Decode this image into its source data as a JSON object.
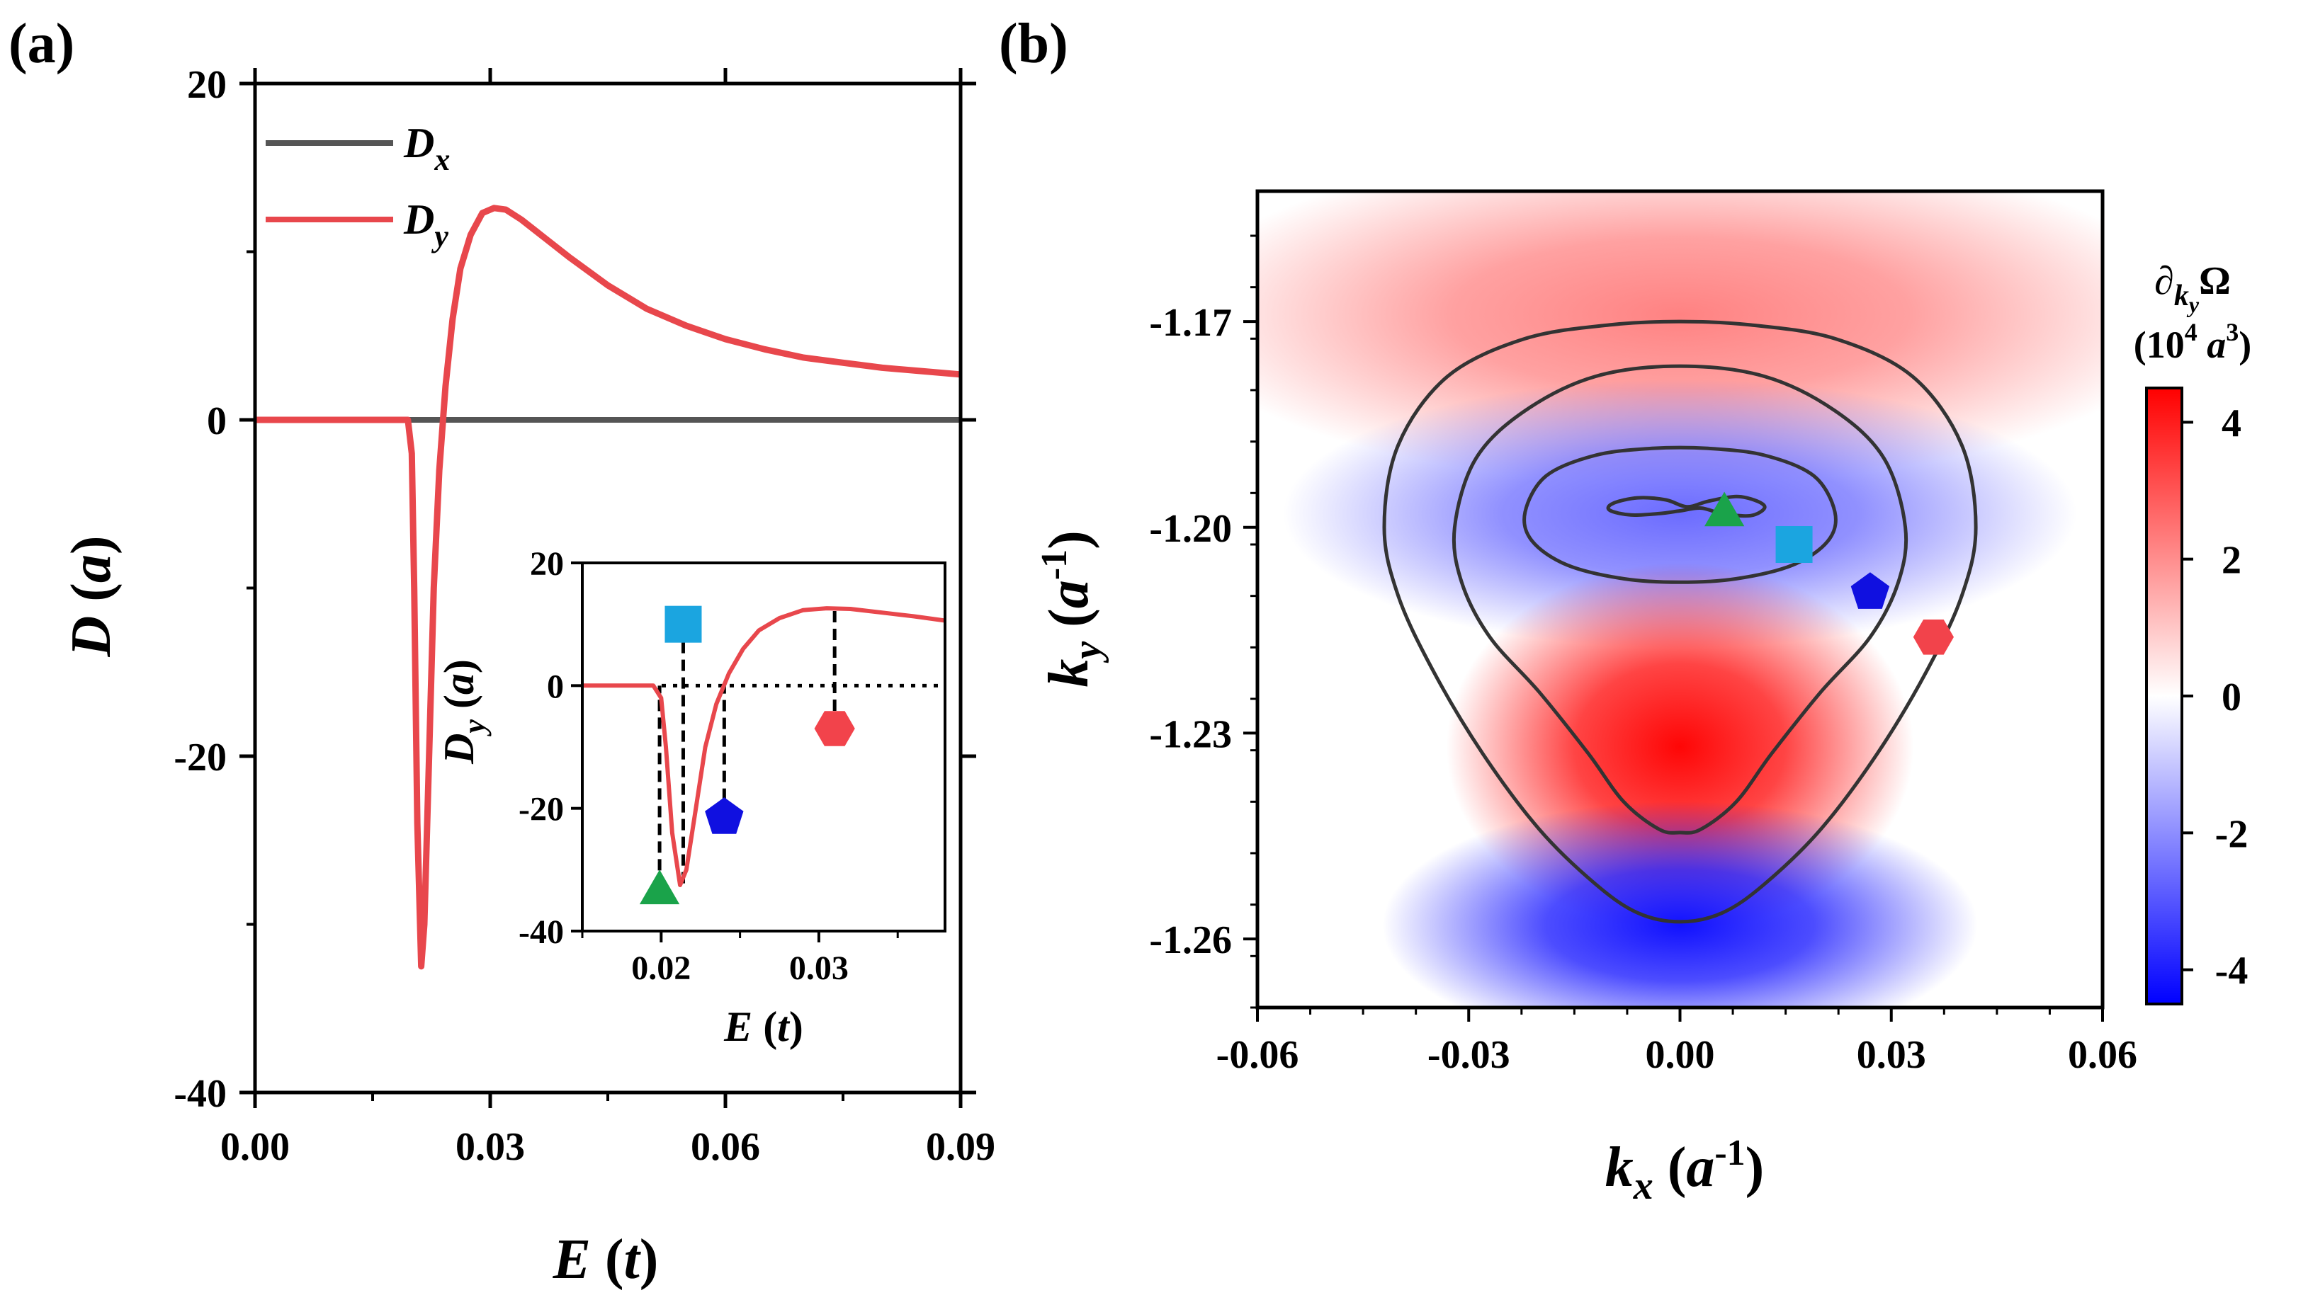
{
  "chart_data": [
    {
      "id": "a",
      "panel_label": "(a)",
      "type": "line",
      "xlabel_sym": "E",
      "xlabel_unit": "t",
      "ylabel_sym": "D",
      "ylabel_unit": "a",
      "xlim": [
        0,
        0.09
      ],
      "ylim": [
        -40,
        20
      ],
      "xticks": [
        0,
        0.03,
        0.06,
        0.09
      ],
      "xtick_labels": [
        "0.00",
        "0.03",
        "0.06",
        "0.09"
      ],
      "yticks": [
        20,
        0,
        -20,
        -40
      ],
      "ytick_labels": [
        "20",
        "0",
        "-20",
        "-40"
      ],
      "legend": [
        {
          "name": "D",
          "sub": "x",
          "color": "#555555"
        },
        {
          "name": "D",
          "sub": "y",
          "color": "#e8474c"
        }
      ],
      "series": [
        {
          "name": "Dx",
          "color": "#555555",
          "x": [
            0.0,
            0.09
          ],
          "y": [
            0,
            0
          ]
        },
        {
          "name": "Dy",
          "color": "#e8474c",
          "x": [
            0.0,
            0.0195,
            0.02,
            0.0203,
            0.0207,
            0.0212,
            0.0216,
            0.0222,
            0.0228,
            0.0235,
            0.0243,
            0.0252,
            0.0262,
            0.0275,
            0.029,
            0.0305,
            0.032,
            0.034,
            0.037,
            0.04,
            0.045,
            0.05,
            0.055,
            0.06,
            0.065,
            0.07,
            0.075,
            0.08,
            0.085,
            0.09
          ],
          "y": [
            0,
            0,
            -2,
            -10,
            -24,
            -32.5,
            -30,
            -20,
            -10,
            -3,
            2,
            6,
            9,
            11,
            12.3,
            12.6,
            12.5,
            11.9,
            10.8,
            9.7,
            8.0,
            6.6,
            5.6,
            4.8,
            4.2,
            3.7,
            3.4,
            3.1,
            2.9,
            2.7
          ]
        }
      ],
      "inset": {
        "xlabel_sym": "E",
        "xlabel_unit": "t",
        "ylabel_sym": "D",
        "ylabel_sub": "y",
        "ylabel_unit": "a",
        "xlim": [
          0.015,
          0.038
        ],
        "ylim": [
          -40,
          20
        ],
        "xticks": [
          0.02,
          0.03
        ],
        "xtick_labels": [
          "0.02",
          "0.03"
        ],
        "yticks": [
          20,
          0,
          -20,
          -40
        ],
        "ytick_labels": [
          "20",
          "0",
          "-20",
          "-40"
        ],
        "series": {
          "color": "#e8474c",
          "x": [
            0.015,
            0.0195,
            0.02,
            0.0203,
            0.0207,
            0.0212,
            0.0216,
            0.0222,
            0.0228,
            0.0235,
            0.0243,
            0.0252,
            0.0262,
            0.0275,
            0.029,
            0.0305,
            0.032,
            0.034,
            0.036,
            0.038
          ],
          "y": [
            0,
            0,
            -2,
            -10,
            -24,
            -32.5,
            -30,
            -20,
            -10,
            -3,
            2,
            6,
            9,
            11,
            12.3,
            12.6,
            12.5,
            11.9,
            11.3,
            10.6
          ]
        },
        "markers": [
          {
            "shape": "triangle",
            "color": "#1aa34a",
            "x": 0.0199,
            "y": -33,
            "line_from_y": 0
          },
          {
            "shape": "square",
            "color": "#1ba5e0",
            "x": 0.0214,
            "y": 10,
            "line_from_y": -32.5
          },
          {
            "shape": "pentagon",
            "color": "#1010e0",
            "x": 0.024,
            "y": -21.5,
            "line_from_y": 0
          },
          {
            "shape": "hexagon",
            "color": "#f2434b",
            "x": 0.031,
            "y": -7,
            "line_from_y": 12.6
          }
        ]
      }
    },
    {
      "id": "b",
      "panel_label": "(b)",
      "type": "heatmap",
      "xlabel_sym": "k",
      "xlabel_sub": "x",
      "xlabel_unit_base": "a",
      "xlabel_unit_exp": "-1",
      "ylabel_sym": "k",
      "ylabel_sub": "y",
      "ylabel_unit_base": "a",
      "ylabel_unit_exp": "-1",
      "xlim": [
        -0.06,
        0.06
      ],
      "ylim": [
        -1.27,
        -1.151
      ],
      "xticks": [
        -0.06,
        -0.03,
        0.0,
        0.03,
        0.06
      ],
      "xtick_labels": [
        "-0.06",
        "-0.03",
        "0.00",
        "0.03",
        "0.06"
      ],
      "yticks": [
        -1.17,
        -1.2,
        -1.23,
        -1.26
      ],
      "ytick_labels": [
        "-1.17",
        "-1.20",
        "-1.23",
        "-1.26"
      ],
      "colorbar": {
        "title_line1_sym": "∂",
        "title_line1_sub": "k",
        "title_line1_subsub": "y",
        "title_line1_tail": "Ω",
        "title_line2": "(10",
        "title_line2_exp": "4",
        "title_line2_unit": " a",
        "title_line2_unit_exp": "3",
        "title_line2_close": ")",
        "range": [
          -4.5,
          4.5
        ],
        "ticks": [
          4,
          2,
          0,
          -2,
          -4
        ],
        "tick_labels": [
          "4",
          "2",
          "0",
          "-2",
          "-4"
        ],
        "colors": [
          "#0000ff",
          "#ffffff",
          "#ff0000"
        ]
      },
      "field_blobs": [
        {
          "sign": "+",
          "x": 0.0,
          "y": -1.169,
          "amp": 2.2
        },
        {
          "sign": "-",
          "x": 0.0,
          "y": -1.198,
          "amp": 2.6
        },
        {
          "sign": "+",
          "x": 0.0,
          "y": -1.232,
          "amp": 4.4
        },
        {
          "sign": "-",
          "x": 0.0,
          "y": -1.258,
          "amp": 4.2
        }
      ],
      "contours": [
        {
          "name": "inner",
          "x": [
            -0.0095,
            -0.006,
            -0.002,
            0.001,
            0.004,
            0.008,
            0.011,
            0.012,
            0.01,
            0.006,
            0.003,
            0.0,
            -0.003,
            -0.007,
            -0.01,
            -0.0095
          ],
          "y": [
            -1.1965,
            -1.1957,
            -1.196,
            -1.197,
            -1.1962,
            -1.1955,
            -1.1962,
            -1.1972,
            -1.1983,
            -1.198,
            -1.1972,
            -1.1976,
            -1.198,
            -1.1982,
            -1.1975,
            -1.1965
          ]
        },
        {
          "name": "middle",
          "x": [
            -0.022,
            -0.019,
            -0.012,
            -0.004,
            0.004,
            0.012,
            0.019,
            0.022,
            0.021,
            0.016,
            0.008,
            0.0,
            -0.008,
            -0.016,
            -0.021,
            -0.022
          ],
          "y": [
            -1.1978,
            -1.1925,
            -1.1895,
            -1.1885,
            -1.1885,
            -1.1895,
            -1.1925,
            -1.1978,
            -1.202,
            -1.2055,
            -1.2075,
            -1.208,
            -1.2075,
            -1.2055,
            -1.202,
            -1.1978
          ]
        },
        {
          "name": "outer2",
          "x": [
            -0.032,
            -0.029,
            -0.022,
            -0.012,
            0.0,
            0.012,
            0.022,
            0.029,
            0.032,
            0.031,
            0.027,
            0.02,
            0.013,
            0.008,
            0.003,
            0.0,
            -0.003,
            -0.008,
            -0.013,
            -0.02,
            -0.027,
            -0.031,
            -0.032
          ],
          "y": [
            -1.2,
            -1.19,
            -1.183,
            -1.178,
            -1.1765,
            -1.178,
            -1.183,
            -1.19,
            -1.2,
            -1.208,
            -1.216,
            -1.224,
            -1.233,
            -1.24,
            -1.244,
            -1.2445,
            -1.244,
            -1.24,
            -1.233,
            -1.224,
            -1.216,
            -1.208,
            -1.2
          ]
        },
        {
          "name": "outer",
          "x": [
            -0.042,
            -0.04,
            -0.033,
            -0.022,
            -0.01,
            0.0,
            0.01,
            0.022,
            0.033,
            0.04,
            0.042,
            0.04,
            0.035,
            0.028,
            0.02,
            0.012,
            0.006,
            0.0,
            -0.006,
            -0.012,
            -0.02,
            -0.028,
            -0.035,
            -0.04,
            -0.042
          ],
          "y": [
            -1.2,
            -1.188,
            -1.178,
            -1.1725,
            -1.1705,
            -1.17,
            -1.1705,
            -1.1725,
            -1.178,
            -1.188,
            -1.2,
            -1.21,
            -1.221,
            -1.233,
            -1.244,
            -1.252,
            -1.2562,
            -1.2575,
            -1.2562,
            -1.252,
            -1.244,
            -1.233,
            -1.221,
            -1.21,
            -1.2
          ]
        }
      ],
      "markers": [
        {
          "shape": "triangle",
          "color": "#1aa34a",
          "x": 0.0063,
          "y": -1.1975
        },
        {
          "shape": "square",
          "color": "#1ba5e0",
          "x": 0.0162,
          "y": -1.2025
        },
        {
          "shape": "pentagon",
          "color": "#1010e0",
          "x": 0.027,
          "y": -1.2095
        },
        {
          "shape": "hexagon",
          "color": "#f2434b",
          "x": 0.036,
          "y": -1.216
        }
      ]
    }
  ]
}
